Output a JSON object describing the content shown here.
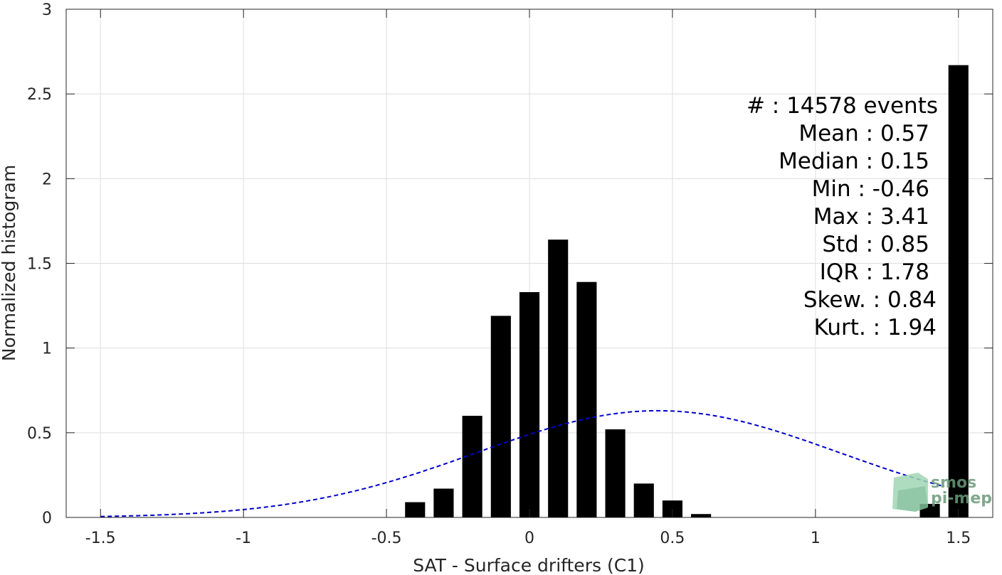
{
  "chart_data": {
    "type": "bar",
    "xlabel": "SAT - Surface drifters (C1)",
    "ylabel": "Normalized histogram",
    "xlim": [
      -1.62,
      1.62
    ],
    "ylim": [
      0,
      3
    ],
    "xticks": [
      -1.5,
      -1,
      -0.5,
      0,
      0.5,
      1,
      1.5
    ],
    "xtick_labels": [
      "-1.5",
      "-1",
      "-0.5",
      "0",
      "0.5",
      "1",
      "1.5"
    ],
    "yticks": [
      0,
      0.5,
      1,
      1.5,
      2,
      2.5,
      3
    ],
    "ytick_labels": [
      "0",
      "0.5",
      "1",
      "1.5",
      "2",
      "2.5",
      "3"
    ],
    "grid": true,
    "bar_width": 0.07,
    "bars": [
      {
        "x": -0.4,
        "value": 0.09
      },
      {
        "x": -0.3,
        "value": 0.17
      },
      {
        "x": -0.2,
        "value": 0.6
      },
      {
        "x": -0.1,
        "value": 1.19
      },
      {
        "x": 0.0,
        "value": 1.33
      },
      {
        "x": 0.1,
        "value": 1.64
      },
      {
        "x": 0.2,
        "value": 1.39
      },
      {
        "x": 0.3,
        "value": 0.52
      },
      {
        "x": 0.4,
        "value": 0.2
      },
      {
        "x": 0.5,
        "value": 0.1
      },
      {
        "x": 0.6,
        "value": 0.02
      },
      {
        "x": 1.4,
        "value": 0.08
      },
      {
        "x": 1.5,
        "value": 2.67
      }
    ],
    "fit_curve": {
      "style": "dashed",
      "color": "#0000cc",
      "mean": 0.45,
      "std": 0.635,
      "peak": 0.63,
      "x_range": [
        -1.5,
        1.45
      ]
    },
    "stats": [
      {
        "label": "#  : 14578 events"
      },
      {
        "label": "Mean : 0.57"
      },
      {
        "label": "Median : 0.15"
      },
      {
        "label": "Min : -0.46"
      },
      {
        "label": "Max : 3.41"
      },
      {
        "label": "Std : 0.85"
      },
      {
        "label": "IQR : 1.78"
      },
      {
        "label": "Skew. : 0.84"
      },
      {
        "label": "Kurt. : 1.94"
      }
    ],
    "watermark": {
      "line1": "smos",
      "line2": "pi-mep"
    }
  }
}
